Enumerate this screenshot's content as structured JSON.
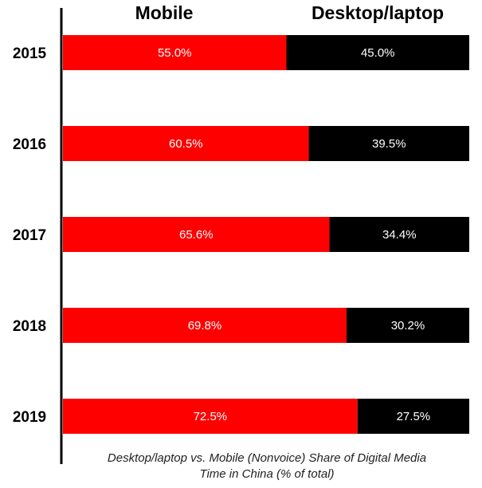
{
  "chart_data": {
    "type": "bar",
    "orientation": "horizontal",
    "stacked": true,
    "caption": [
      "Desktop/laptop vs. Mobile (Nonvoice) Share of Digital Media",
      "Time in China (% of total)"
    ],
    "categories": [
      "2015",
      "2016",
      "2017",
      "2018",
      "2019"
    ],
    "series": [
      {
        "name": "Mobile",
        "color": "#ff0000",
        "values": [
          55.0,
          60.5,
          65.6,
          69.8,
          72.5
        ],
        "labels": [
          "55.0%",
          "60.5%",
          "65.6%",
          "69.8%",
          "72.5%"
        ]
      },
      {
        "name": "Desktop/laptop",
        "color": "#000000",
        "values": [
          45.0,
          39.5,
          34.4,
          30.2,
          27.5
        ],
        "labels": [
          "45.0%",
          "39.5%",
          "34.4%",
          "30.2%",
          "27.5%"
        ]
      }
    ],
    "xlim": [
      0,
      100
    ],
    "grid": false,
    "legend": "top"
  }
}
